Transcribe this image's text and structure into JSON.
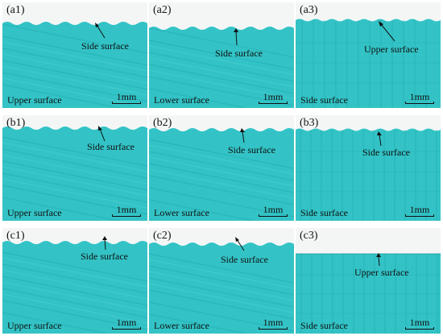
{
  "figure": {
    "scale_label": "1mm",
    "panels": [
      {
        "id": "a1",
        "label": "(a1)",
        "annotation": "Side surface",
        "surface": "Upper surface",
        "top": "wavy"
      },
      {
        "id": "a2",
        "label": "(a2)",
        "annotation": "Side surface",
        "surface": "Lower surface",
        "top": "wavy"
      },
      {
        "id": "a3",
        "label": "(a3)",
        "annotation": "Upper surface",
        "surface": "Side surface",
        "top": "wavy"
      },
      {
        "id": "b1",
        "label": "(b1)",
        "annotation": "Side surface",
        "surface": "Upper surface",
        "top": "wavy"
      },
      {
        "id": "b2",
        "label": "(b2)",
        "annotation": "Side surface",
        "surface": "Lower surface",
        "top": "wavy"
      },
      {
        "id": "b3",
        "label": "(b3)",
        "annotation": "Side surface",
        "surface": "Side surface",
        "top": "wavy"
      },
      {
        "id": "c1",
        "label": "(c1)",
        "annotation": "Side surface",
        "surface": "Upper surface",
        "top": "wavy"
      },
      {
        "id": "c2",
        "label": "(c2)",
        "annotation": "Side surface",
        "surface": "Lower surface",
        "top": "wavy"
      },
      {
        "id": "c3",
        "label": "(c3)",
        "annotation": "Upper surface",
        "surface": "Side surface",
        "top": "flat"
      }
    ],
    "colors": {
      "material": "#33c3c6",
      "material_dark": "#1aa7ac",
      "material_light": "#5fd6d6",
      "background": "#f4f6f6"
    }
  }
}
